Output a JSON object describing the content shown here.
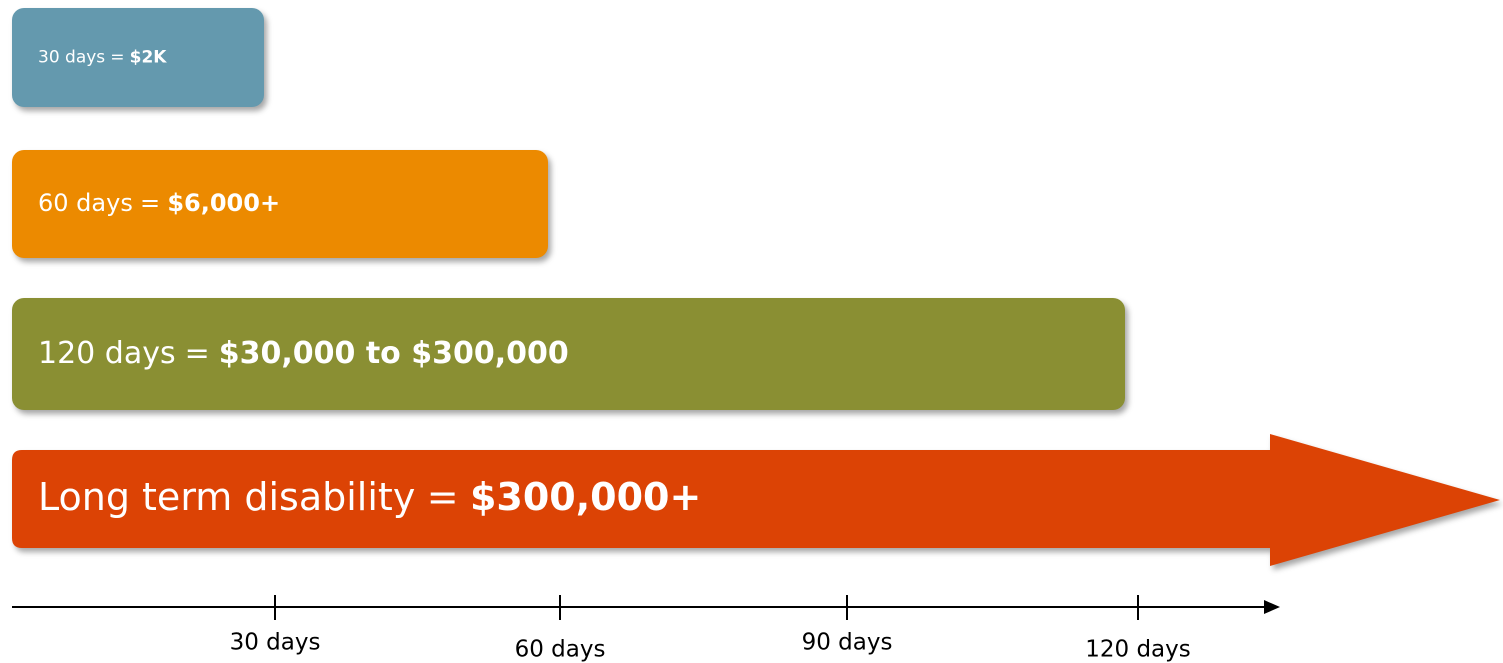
{
  "separator": "=",
  "bars": [
    {
      "label": "30 days",
      "amount": "$2K",
      "color": "#6499ae"
    },
    {
      "label": "60 days",
      "amount": "$6,000+",
      "color": "#ec8a00"
    },
    {
      "label": "120 days",
      "amount": "$30,000 to $300,000",
      "color": "#8a8f33"
    },
    {
      "label": "Long term disability",
      "amount": "$300,000+",
      "color": "#dc4305"
    }
  ],
  "timeline": {
    "ticks": [
      "30 days",
      "60 days",
      "90 days",
      "120 days"
    ]
  }
}
